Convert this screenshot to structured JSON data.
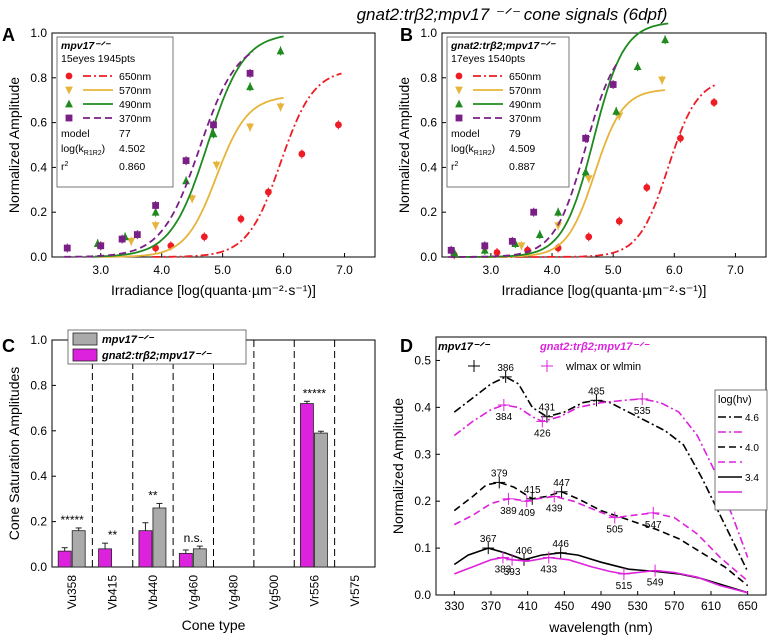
{
  "title": "gnat2:trβ2;mpv17 ⁻ᐟ⁻ cone signals (6dpf)",
  "panels": {
    "A": {
      "letter": "A",
      "ylabel": "Normalized Amplitude",
      "xlabel": "Irradiance [log(quanta·µm⁻²·s⁻¹)]",
      "legend_title": "mpv17⁻ᐟ⁻",
      "legend_sub": "15eyes 1945pts",
      "model_label": "model",
      "model": "77",
      "logk_label": "log(k",
      "logk_sub": "R1R2",
      "logk": "4.502",
      "r2_label": "r",
      "r2": "0.860"
    },
    "B": {
      "letter": "B",
      "ylabel": "Normalized Amplitude",
      "xlabel": "Irradiance [log(quanta·µm⁻²·s⁻¹)]",
      "legend_title": "gnat2:trβ2;mpv17⁻ᐟ⁻",
      "legend_sub": "17eyes 1540pts",
      "model_label": "model",
      "model": "79",
      "logk_label": "log(k",
      "logk_sub": "R1R2",
      "logk": "4.509",
      "r2_label": "r",
      "r2": "0.887"
    },
    "C": {
      "letter": "C",
      "ylabel": "Cone Saturation Amplitudes",
      "xlabel": "Cone type",
      "legend": [
        "mpv17⁻ᐟ⁻",
        "gnat2:trβ2;mpv17⁻ᐟ⁻"
      ]
    },
    "D": {
      "letter": "D",
      "ylabel": "Normalized Amplitude",
      "xlabel": "wavelength (nm)",
      "legend_a": "mpv17⁻ᐟ⁻",
      "legend_b": "gnat2:trβ2;mpv17⁻ᐟ⁻",
      "legend_marker": "wlmax or wlmin",
      "log_title": "log(hν)"
    }
  },
  "colors": {
    "c650": "#ee1c24",
    "c570": "#e7b43a",
    "c490": "#1f8a1f",
    "c370": "#7a1f86",
    "magenta": "#dd22dd",
    "black": "#000000"
  },
  "chart_data": [
    {
      "id": "A",
      "type": "scatter",
      "xlabel": "Irradiance [log(quanta·µm⁻²·s⁻¹)]",
      "ylabel": "Normalized Amplitude",
      "xlim": [
        2.2,
        7.5
      ],
      "ylim": [
        0,
        1.0
      ],
      "xticks": [
        3.0,
        4.0,
        5.0,
        6.0,
        7.0
      ],
      "yticks": [
        0.0,
        0.2,
        0.4,
        0.6,
        0.8,
        1.0
      ],
      "series": [
        {
          "name": "650nm",
          "color": "#ee1c24",
          "marker": "circle",
          "dash": "dashdot",
          "fit_max": 0.84,
          "fit_mid": 5.95,
          "fit_slope": 1.6,
          "points": [
            [
              3.9,
              0.04
            ],
            [
              4.15,
              0.05
            ],
            [
              4.7,
              0.09
            ],
            [
              5.3,
              0.17
            ],
            [
              5.75,
              0.29
            ],
            [
              6.3,
              0.46
            ],
            [
              6.9,
              0.59
            ]
          ]
        },
        {
          "name": "570nm",
          "color": "#e7b43a",
          "marker": "triangle-down",
          "dash": "solid",
          "fit_max": 0.72,
          "fit_mid": 4.9,
          "fit_slope": 1.7,
          "points": [
            [
              3.0,
              0.05
            ],
            [
              3.5,
              0.07
            ],
            [
              3.9,
              0.14
            ],
            [
              4.5,
              0.26
            ],
            [
              4.9,
              0.41
            ],
            [
              5.45,
              0.58
            ],
            [
              5.95,
              0.67
            ]
          ]
        },
        {
          "name": "490nm",
          "color": "#1f8a1f",
          "marker": "triangle-up",
          "dash": "solid",
          "fit_max": 1.0,
          "fit_mid": 4.75,
          "fit_slope": 1.45,
          "points": [
            [
              2.95,
              0.06
            ],
            [
              3.4,
              0.09
            ],
            [
              3.9,
              0.2
            ],
            [
              4.4,
              0.34
            ],
            [
              4.85,
              0.55
            ],
            [
              5.45,
              0.76
            ],
            [
              5.95,
              0.92
            ]
          ]
        },
        {
          "name": "370nm",
          "color": "#7a1f86",
          "marker": "square",
          "dash": "dash",
          "fit_max": 0.97,
          "fit_mid": 4.62,
          "fit_slope": 1.4,
          "points": [
            [
              2.45,
              0.04
            ],
            [
              3.0,
              0.05
            ],
            [
              3.35,
              0.08
            ],
            [
              3.6,
              0.1
            ],
            [
              3.9,
              0.23
            ],
            [
              4.4,
              0.43
            ],
            [
              4.85,
              0.59
            ],
            [
              5.45,
              0.82
            ]
          ]
        }
      ]
    },
    {
      "id": "B",
      "type": "scatter",
      "xlabel": "Irradiance [log(quanta·µm⁻²·s⁻¹)]",
      "ylabel": "Normalized Amplitude",
      "xlim": [
        2.2,
        7.5
      ],
      "ylim": [
        0,
        1.0
      ],
      "xticks": [
        3.0,
        4.0,
        5.0,
        6.0,
        7.0
      ],
      "yticks": [
        0.0,
        0.2,
        0.4,
        0.6,
        0.8,
        1.0
      ],
      "series": [
        {
          "name": "650nm",
          "color": "#ee1c24",
          "marker": "circle",
          "dash": "dashdot",
          "fit_max": 0.8,
          "fit_mid": 5.9,
          "fit_slope": 1.8,
          "points": [
            [
              2.4,
              0.01
            ],
            [
              3.1,
              0.02
            ],
            [
              3.6,
              0.03
            ],
            [
              4.1,
              0.04
            ],
            [
              4.6,
              0.09
            ],
            [
              5.1,
              0.16
            ],
            [
              5.55,
              0.31
            ],
            [
              6.1,
              0.53
            ],
            [
              6.65,
              0.69
            ]
          ]
        },
        {
          "name": "570nm",
          "color": "#e7b43a",
          "marker": "triangle-down",
          "dash": "solid",
          "fit_max": 0.75,
          "fit_mid": 4.7,
          "fit_slope": 1.9,
          "points": [
            [
              2.9,
              0.03
            ],
            [
              3.5,
              0.05
            ],
            [
              4.1,
              0.14
            ],
            [
              4.6,
              0.35
            ],
            [
              5.1,
              0.63
            ],
            [
              5.8,
              0.79
            ]
          ]
        },
        {
          "name": "490nm",
          "color": "#1f8a1f",
          "marker": "triangle-up",
          "dash": "solid",
          "fit_max": 1.05,
          "fit_mid": 4.68,
          "fit_slope": 1.75,
          "points": [
            [
              2.4,
              0.02
            ],
            [
              2.9,
              0.03
            ],
            [
              3.4,
              0.06
            ],
            [
              3.8,
              0.1
            ],
            [
              4.1,
              0.2
            ],
            [
              4.55,
              0.38
            ],
            [
              5.05,
              0.65
            ],
            [
              5.4,
              0.85
            ],
            [
              5.85,
              0.97
            ]
          ]
        },
        {
          "name": "370nm",
          "color": "#7a1f86",
          "marker": "square",
          "dash": "dash",
          "fit_max": 0.98,
          "fit_mid": 4.55,
          "fit_slope": 1.7,
          "points": [
            [
              2.35,
              0.03
            ],
            [
              2.9,
              0.05
            ],
            [
              3.35,
              0.07
            ],
            [
              3.7,
              0.2
            ],
            [
              4.1,
              0.36
            ],
            [
              4.55,
              0.53
            ],
            [
              5.0,
              0.77
            ]
          ]
        }
      ]
    },
    {
      "id": "C",
      "type": "bar",
      "xlabel": "Cone type",
      "ylabel": "Cone Saturation Amplitudes",
      "ylim": [
        0,
        1.0
      ],
      "yticks": [
        0.0,
        0.2,
        0.4,
        0.6,
        0.8,
        1.0
      ],
      "categories": [
        "Vu358",
        "Vb415",
        "Vb440",
        "Vg460",
        "Vg480",
        "Vg500",
        "Vr556",
        "Vr575"
      ],
      "series": [
        {
          "name": "gnat2:trβ2;mpv17⁻ᐟ⁻",
          "color": "#dd22dd",
          "values": [
            0.07,
            0.08,
            0.16,
            0.06,
            null,
            null,
            0.72,
            null
          ],
          "errors": [
            0.015,
            0.025,
            0.035,
            0.015,
            null,
            null,
            0.01,
            null
          ]
        },
        {
          "name": "mpv17⁻ᐟ⁻",
          "color": "#aaaaaa",
          "values": [
            0.16,
            null,
            0.26,
            0.08,
            null,
            null,
            0.59,
            null
          ],
          "errors": [
            0.012,
            null,
            0.02,
            0.012,
            null,
            null,
            0.008,
            null
          ]
        }
      ],
      "annotations": [
        "*****",
        "**",
        "**",
        "n.s.",
        "",
        "",
        "*****",
        ""
      ]
    },
    {
      "id": "D",
      "type": "line",
      "xlabel": "wavelength (nm)",
      "ylabel": "Normalized Amplitude",
      "xlim": [
        310,
        670
      ],
      "ylim": [
        0,
        0.55
      ],
      "xticks": [
        330,
        370,
        410,
        450,
        490,
        530,
        570,
        610,
        650
      ],
      "yticks": [
        0.0,
        0.1,
        0.2,
        0.3,
        0.4,
        0.5
      ],
      "series": [
        {
          "name": "4.6",
          "group": "mpv17⁻ᐟ⁻",
          "color": "#000000",
          "dash": "dashdot",
          "x": [
            330,
            350,
            370,
            386,
            400,
            415,
            431,
            450,
            470,
            485,
            500,
            520,
            540,
            560,
            580,
            600,
            620,
            650
          ],
          "y": [
            0.39,
            0.42,
            0.45,
            0.465,
            0.45,
            0.4,
            0.38,
            0.39,
            0.41,
            0.415,
            0.41,
            0.39,
            0.37,
            0.35,
            0.32,
            0.25,
            0.17,
            0.05
          ],
          "marks": [
            386,
            431,
            485
          ]
        },
        {
          "name": "4.6",
          "group": "gnat2:trβ2;mpv17⁻ᐟ⁻",
          "color": "#dd22dd",
          "dash": "dashdot",
          "x": [
            330,
            350,
            370,
            384,
            400,
            415,
            426,
            445,
            465,
            490,
            515,
            535,
            555,
            575,
            595,
            615,
            635,
            650
          ],
          "y": [
            0.34,
            0.37,
            0.395,
            0.405,
            0.4,
            0.38,
            0.37,
            0.38,
            0.4,
            0.41,
            0.415,
            0.418,
            0.41,
            0.39,
            0.34,
            0.26,
            0.16,
            0.08
          ],
          "marks": [
            384,
            426,
            535
          ]
        },
        {
          "name": "4.0",
          "group": "mpv17⁻ᐟ⁻",
          "color": "#000000",
          "dash": "dash",
          "x": [
            330,
            350,
            365,
            379,
            395,
            415,
            430,
            447,
            465,
            490,
            520,
            550,
            575,
            600,
            625,
            650
          ],
          "y": [
            0.18,
            0.21,
            0.235,
            0.24,
            0.23,
            0.205,
            0.21,
            0.22,
            0.205,
            0.18,
            0.16,
            0.14,
            0.12,
            0.09,
            0.06,
            0.02
          ],
          "marks": [
            379,
            415,
            447
          ]
        },
        {
          "name": "4.0",
          "group": "gnat2:trβ2;mpv17⁻ᐟ⁻",
          "color": "#dd22dd",
          "dash": "dash",
          "x": [
            330,
            350,
            370,
            389,
            400,
            409,
            420,
            439,
            460,
            485,
            505,
            525,
            547,
            570,
            595,
            620,
            650
          ],
          "y": [
            0.15,
            0.17,
            0.195,
            0.205,
            0.203,
            0.2,
            0.205,
            0.21,
            0.2,
            0.18,
            0.165,
            0.17,
            0.175,
            0.165,
            0.13,
            0.08,
            0.03
          ],
          "marks": [
            389,
            409,
            439,
            505,
            547
          ]
        },
        {
          "name": "3.4",
          "group": "mpv17⁻ᐟ⁻",
          "color": "#000000",
          "dash": "solid",
          "x": [
            330,
            345,
            367,
            385,
            406,
            425,
            446,
            465,
            490,
            520,
            550,
            575,
            600,
            625,
            650
          ],
          "y": [
            0.065,
            0.085,
            0.1,
            0.09,
            0.075,
            0.085,
            0.09,
            0.085,
            0.07,
            0.055,
            0.05,
            0.045,
            0.035,
            0.02,
            0.005
          ],
          "marks": [
            367,
            406,
            446
          ]
        },
        {
          "name": "3.4",
          "group": "gnat2:trβ2;mpv17⁻ᐟ⁻",
          "color": "#dd22dd",
          "dash": "solid",
          "x": [
            330,
            350,
            370,
            383,
            393,
            410,
            433,
            455,
            480,
            500,
            515,
            530,
            549,
            570,
            595,
            620,
            650
          ],
          "y": [
            0.045,
            0.06,
            0.075,
            0.08,
            0.075,
            0.072,
            0.08,
            0.075,
            0.06,
            0.05,
            0.045,
            0.048,
            0.052,
            0.048,
            0.038,
            0.02,
            0.005
          ],
          "marks": [
            383,
            393,
            433,
            515,
            549
          ]
        }
      ]
    }
  ]
}
